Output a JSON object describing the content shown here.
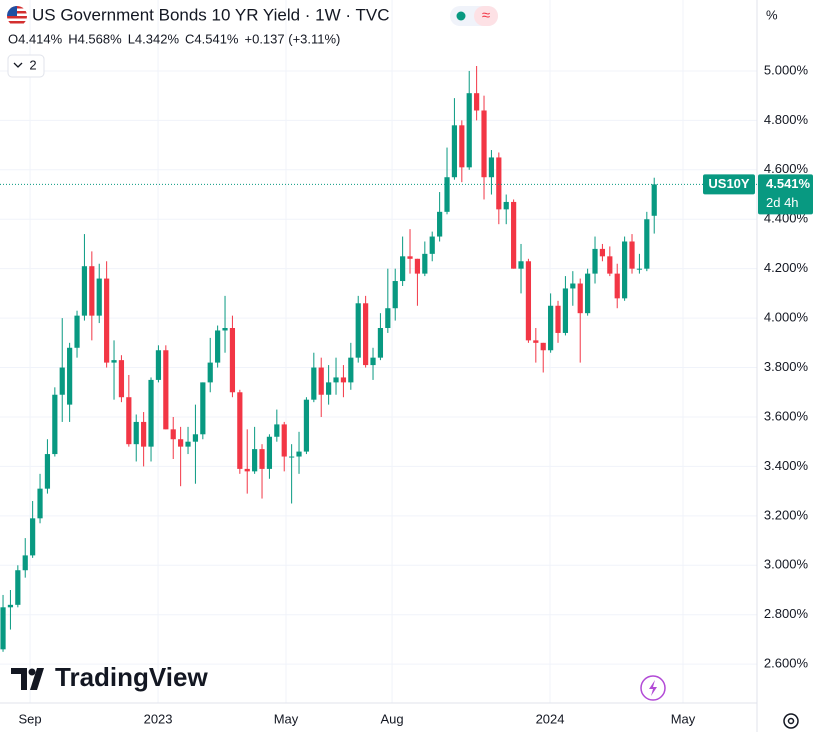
{
  "chart_data": {
    "type": "candlestick",
    "title": "US Government Bonds 10 YR Yield · 1W · TVC",
    "legend_values": [
      "O4.414%",
      "H4.568%",
      "L4.342%",
      "C4.541%",
      "+0.137 (+3.11%)"
    ],
    "open": [
      2.66,
      2.83,
      2.84,
      2.98,
      3.04,
      3.19,
      3.31,
      3.45,
      3.69,
      3.65,
      3.88,
      4.01,
      4.21,
      4.01,
      4.16,
      3.82,
      3.83,
      3.68,
      3.49,
      3.58,
      3.48,
      3.75,
      3.87,
      3.55,
      3.51,
      3.48,
      3.5,
      3.53,
      3.74,
      3.82,
      3.95,
      3.96,
      3.7,
      3.39,
      3.38,
      3.47,
      3.39,
      3.52,
      3.57,
      3.44,
      3.44,
      3.46,
      3.67,
      3.8,
      3.69,
      3.74,
      3.76,
      3.74,
      3.84,
      4.06,
      3.81,
      3.84,
      3.96,
      4.04,
      4.15,
      4.25,
      4.24,
      4.18,
      4.26,
      4.33,
      4.43,
      4.57,
      4.78,
      4.61,
      4.91,
      4.84,
      4.57,
      4.65,
      4.44,
      4.47,
      4.2,
      4.23,
      3.91,
      3.9,
      3.87,
      4.05,
      3.94,
      4.12,
      4.14,
      4.02,
      4.18,
      4.28,
      4.25,
      4.18,
      4.08,
      4.31,
      4.2,
      4.2,
      4.414
    ],
    "high": [
      2.88,
      2.9,
      3.0,
      3.11,
      3.26,
      3.37,
      3.51,
      3.72,
      4.0,
      3.9,
      4.03,
      4.34,
      4.27,
      4.22,
      4.23,
      3.91,
      3.85,
      3.77,
      3.61,
      3.62,
      3.76,
      3.89,
      3.89,
      3.6,
      3.56,
      3.56,
      3.65,
      3.74,
      3.92,
      3.97,
      4.09,
      4.01,
      3.71,
      3.55,
      3.56,
      3.49,
      3.53,
      3.63,
      3.58,
      3.49,
      3.54,
      3.68,
      3.86,
      3.84,
      3.81,
      3.84,
      3.81,
      3.9,
      4.09,
      4.09,
      3.88,
      4.02,
      4.2,
      4.2,
      4.33,
      4.36,
      4.24,
      4.31,
      4.35,
      4.51,
      4.69,
      4.89,
      4.8,
      5.0,
      5.02,
      4.9,
      4.68,
      4.67,
      4.5,
      4.48,
      4.3,
      4.24,
      3.96,
      3.9,
      4.1,
      4.07,
      4.17,
      4.19,
      4.16,
      4.2,
      4.33,
      4.3,
      4.29,
      4.22,
      4.33,
      4.34,
      4.26,
      4.43,
      4.568
    ],
    "low": [
      2.65,
      2.74,
      2.83,
      2.95,
      3.03,
      3.17,
      3.29,
      3.44,
      3.58,
      3.58,
      3.84,
      3.99,
      3.91,
      3.98,
      3.8,
      3.67,
      3.66,
      3.48,
      3.42,
      3.4,
      3.42,
      3.74,
      3.55,
      3.43,
      3.32,
      3.45,
      3.33,
      3.51,
      3.7,
      3.8,
      3.86,
      3.68,
      3.37,
      3.29,
      3.37,
      3.27,
      3.35,
      3.5,
      3.38,
      3.25,
      3.37,
      3.45,
      3.66,
      3.6,
      3.65,
      3.69,
      3.68,
      3.71,
      3.82,
      3.8,
      3.75,
      3.83,
      3.94,
      3.99,
      4.13,
      4.18,
      4.05,
      4.17,
      4.23,
      4.31,
      4.42,
      4.56,
      4.55,
      4.6,
      4.8,
      4.48,
      4.5,
      4.38,
      4.38,
      4.2,
      4.1,
      3.9,
      3.82,
      3.78,
      3.86,
      3.9,
      3.93,
      4.05,
      3.82,
      4.01,
      4.14,
      4.23,
      4.17,
      4.04,
      4.07,
      4.18,
      4.18,
      4.19,
      4.342
    ],
    "close": [
      2.83,
      2.84,
      2.98,
      3.04,
      3.19,
      3.31,
      3.45,
      3.69,
      3.8,
      3.88,
      4.01,
      4.21,
      4.01,
      4.16,
      3.82,
      3.83,
      3.68,
      3.49,
      3.58,
      3.48,
      3.75,
      3.87,
      3.55,
      3.51,
      3.48,
      3.5,
      3.53,
      3.74,
      3.82,
      3.95,
      3.96,
      3.7,
      3.39,
      3.38,
      3.47,
      3.39,
      3.52,
      3.57,
      3.44,
      3.44,
      3.46,
      3.67,
      3.8,
      3.69,
      3.74,
      3.76,
      3.74,
      3.84,
      4.06,
      3.81,
      3.84,
      3.96,
      4.04,
      4.15,
      4.25,
      4.24,
      4.18,
      4.26,
      4.33,
      4.43,
      4.57,
      4.78,
      4.61,
      4.91,
      4.84,
      4.57,
      4.65,
      4.44,
      4.47,
      4.2,
      4.23,
      3.91,
      3.9,
      3.87,
      4.05,
      3.94,
      4.12,
      4.14,
      4.02,
      4.18,
      4.28,
      4.25,
      4.18,
      4.08,
      4.31,
      4.2,
      4.2,
      4.4,
      4.541
    ],
    "up_color": "#089981",
    "down_color": "#f23645",
    "xlim": [
      -0.41,
      101.89
    ],
    "xticks": [
      {
        "value": 3.65,
        "label": "Sep"
      },
      {
        "value": 20.95,
        "label": "2023"
      },
      {
        "value": 38.24,
        "label": "May"
      },
      {
        "value": 52.57,
        "label": "Aug"
      },
      {
        "value": 73.92,
        "label": "2024"
      },
      {
        "value": 91.89,
        "label": "May"
      }
    ],
    "ylim": [
      2.455,
      5.287
    ],
    "yticks": [
      {
        "value": 2.6,
        "label": "2.600%"
      },
      {
        "value": 2.8,
        "label": "2.800%"
      },
      {
        "value": 3.0,
        "label": "3.000%"
      },
      {
        "value": 3.2,
        "label": "3.200%"
      },
      {
        "value": 3.4,
        "label": "3.400%"
      },
      {
        "value": 3.6,
        "label": "3.600%"
      },
      {
        "value": 3.8,
        "label": "3.800%"
      },
      {
        "value": 4.0,
        "label": "4.000%"
      },
      {
        "value": 4.2,
        "label": "4.200%"
      },
      {
        "value": 4.4,
        "label": "4.400%"
      },
      {
        "value": 4.6,
        "label": "4.600%"
      },
      {
        "value": 4.8,
        "label": "4.800%"
      },
      {
        "value": 5.0,
        "label": "5.000%"
      }
    ],
    "grid": true,
    "unit": "%",
    "symbol": "US10Y",
    "last_price": {
      "value": 4.541,
      "label": "4.541%"
    },
    "countdown": "2d 4h"
  },
  "ui": {
    "indicator_count": "2",
    "brand": "TradingView"
  }
}
